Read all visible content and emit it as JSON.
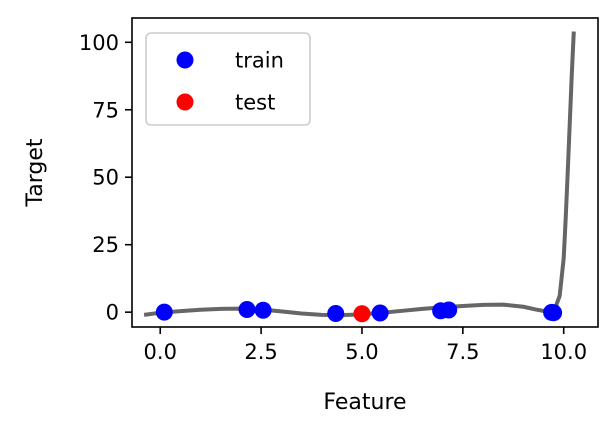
{
  "chart_data": {
    "type": "scatter",
    "title": "",
    "xlabel": "Feature",
    "ylabel": "Target",
    "xlim": [
      -0.7,
      10.85
    ],
    "ylim": [
      -5.5,
      109
    ],
    "x_ticks": [
      0.0,
      2.5,
      5.0,
      7.5,
      10.0
    ],
    "x_tick_labels": [
      "0.0",
      "2.5",
      "5.0",
      "7.5",
      "10.0"
    ],
    "y_ticks": [
      0,
      25,
      50,
      75,
      100
    ],
    "y_tick_labels": [
      "0",
      "25",
      "50",
      "75",
      "100"
    ],
    "grid": false,
    "legend": {
      "placement": "top-left",
      "entries": [
        {
          "label": "train",
          "color": "#0000ff"
        },
        {
          "label": "test",
          "color": "#ff0000"
        }
      ]
    },
    "series": [
      {
        "name": "train",
        "kind": "scatter",
        "color": "#0000ff",
        "x": [
          0.1,
          2.15,
          2.55,
          4.35,
          5.45,
          6.95,
          7.15,
          9.7,
          9.75
        ],
        "y": [
          0.0,
          1.0,
          0.7,
          -0.5,
          -0.3,
          0.5,
          0.8,
          -0.1,
          -0.2
        ]
      },
      {
        "name": "test",
        "kind": "scatter",
        "color": "#ff0000",
        "x": [
          5.0
        ],
        "y": [
          -0.6
        ]
      },
      {
        "kind": "line",
        "color": "#666666",
        "x": [
          -0.4,
          0.0,
          0.5,
          1.0,
          1.5,
          2.0,
          2.5,
          3.0,
          3.5,
          4.0,
          4.5,
          5.0,
          5.5,
          6.0,
          6.5,
          7.0,
          7.5,
          8.0,
          8.5,
          9.0,
          9.3,
          9.6,
          9.8,
          9.9,
          10.0,
          10.05,
          10.1,
          10.15,
          10.2,
          10.25
        ],
        "y": [
          -1.0,
          -0.2,
          0.4,
          0.9,
          1.2,
          1.3,
          1.0,
          0.3,
          -0.5,
          -1.0,
          -1.1,
          -0.8,
          -0.2,
          0.5,
          1.2,
          1.8,
          2.3,
          2.7,
          2.8,
          2.0,
          1.0,
          0.2,
          2.0,
          6.0,
          20.0,
          35.0,
          52.0,
          70.0,
          88.0,
          104.0
        ]
      }
    ]
  }
}
